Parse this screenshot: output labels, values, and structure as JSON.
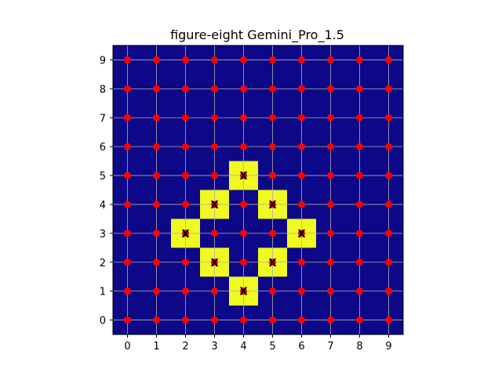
{
  "chart_data": {
    "type": "heatmap",
    "title": "figure-eight Gemini_Pro_1.5",
    "xlabel": "",
    "ylabel": "",
    "xlim": [
      -0.5,
      9.5
    ],
    "ylim": [
      -0.5,
      9.5
    ],
    "x_ticks": [
      "0",
      "1",
      "2",
      "3",
      "4",
      "5",
      "6",
      "7",
      "8",
      "9"
    ],
    "y_ticks": [
      "0",
      "1",
      "2",
      "3",
      "4",
      "5",
      "6",
      "7",
      "8",
      "9"
    ],
    "grid": true,
    "background_color": "#0d0887",
    "highlight_color": "#f0f921",
    "point_color": "#ff0000",
    "grid_color": "#b0b0b0",
    "highlighted_cells": [
      {
        "x": 4,
        "y": 5,
        "label": "X"
      },
      {
        "x": 3,
        "y": 4,
        "label": "X"
      },
      {
        "x": 5,
        "y": 4,
        "label": "X"
      },
      {
        "x": 2,
        "y": 3,
        "label": "X"
      },
      {
        "x": 6,
        "y": 3,
        "label": "X"
      },
      {
        "x": 3,
        "y": 2,
        "label": "X"
      },
      {
        "x": 5,
        "y": 2,
        "label": "X"
      },
      {
        "x": 4,
        "y": 1,
        "label": "X"
      }
    ],
    "points_grid": {
      "x_values": [
        0,
        1,
        2,
        3,
        4,
        5,
        6,
        7,
        8,
        9
      ],
      "y_values": [
        0,
        1,
        2,
        3,
        4,
        5,
        6,
        7,
        8,
        9
      ]
    }
  }
}
